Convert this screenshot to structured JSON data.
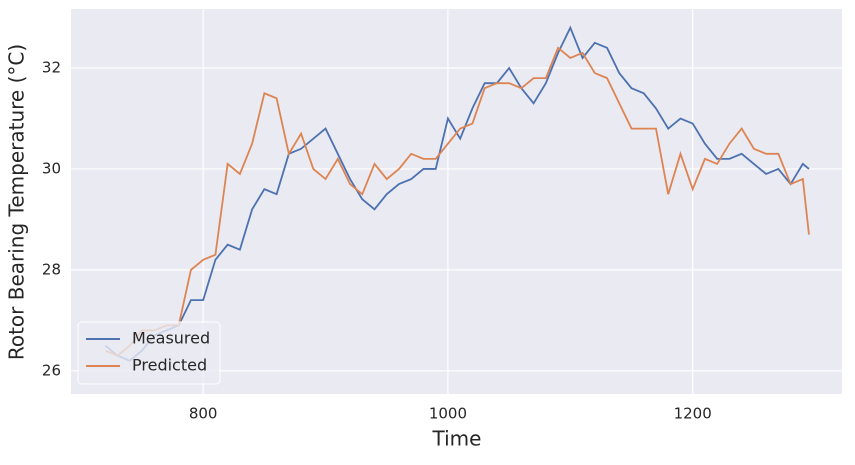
{
  "chart_data": {
    "type": "line",
    "xlabel": "Time",
    "ylabel": "Rotor Bearing Temperature (°C)",
    "x": [
      720,
      730,
      740,
      750,
      760,
      770,
      780,
      790,
      800,
      810,
      820,
      830,
      840,
      850,
      860,
      870,
      880,
      890,
      900,
      910,
      920,
      930,
      940,
      950,
      960,
      970,
      980,
      990,
      1000,
      1010,
      1020,
      1030,
      1040,
      1050,
      1060,
      1070,
      1080,
      1090,
      1100,
      1110,
      1120,
      1130,
      1140,
      1150,
      1160,
      1170,
      1180,
      1190,
      1200,
      1210,
      1220,
      1230,
      1240,
      1250,
      1260,
      1270,
      1280,
      1290,
      1295
    ],
    "series": [
      {
        "name": "Measured",
        "color": "#4c72b0",
        "values": [
          26.5,
          26.3,
          26.2,
          26.4,
          26.7,
          26.8,
          26.9,
          27.4,
          27.4,
          28.2,
          28.5,
          28.4,
          29.2,
          29.6,
          29.5,
          30.3,
          30.4,
          30.6,
          30.8,
          30.3,
          29.8,
          29.4,
          29.2,
          29.5,
          29.7,
          29.8,
          30.0,
          30.0,
          31.0,
          30.6,
          31.2,
          31.7,
          31.7,
          32.0,
          31.6,
          31.3,
          31.7,
          32.3,
          32.8,
          32.2,
          32.5,
          32.4,
          31.9,
          31.6,
          31.5,
          31.2,
          30.8,
          31.0,
          30.9,
          30.5,
          30.2,
          30.2,
          30.3,
          30.1,
          29.9,
          30.0,
          29.7,
          30.1,
          30.0
        ]
      },
      {
        "name": "Predicted",
        "color": "#dd8452",
        "values": [
          26.4,
          26.3,
          26.5,
          26.8,
          26.8,
          26.9,
          26.9,
          28.0,
          28.2,
          28.3,
          30.1,
          29.9,
          30.5,
          31.5,
          31.4,
          30.3,
          30.7,
          30.0,
          29.8,
          30.2,
          29.7,
          29.5,
          30.1,
          29.8,
          30.0,
          30.3,
          30.2,
          30.2,
          30.5,
          30.8,
          30.9,
          31.6,
          31.7,
          31.7,
          31.6,
          31.8,
          31.8,
          32.4,
          32.2,
          32.3,
          31.9,
          31.8,
          31.3,
          30.8,
          30.8,
          30.8,
          29.5,
          30.3,
          29.6,
          30.2,
          30.1,
          30.5,
          30.8,
          30.4,
          30.3,
          30.3,
          29.7,
          29.8,
          28.7
        ]
      }
    ],
    "xlim": [
      692,
      1322
    ],
    "ylim": [
      25.54,
      33.17
    ],
    "xticks": [
      800,
      1000,
      1200
    ],
    "yticks": [
      26,
      28,
      30,
      32
    ],
    "grid": true,
    "legend": "lower left"
  }
}
